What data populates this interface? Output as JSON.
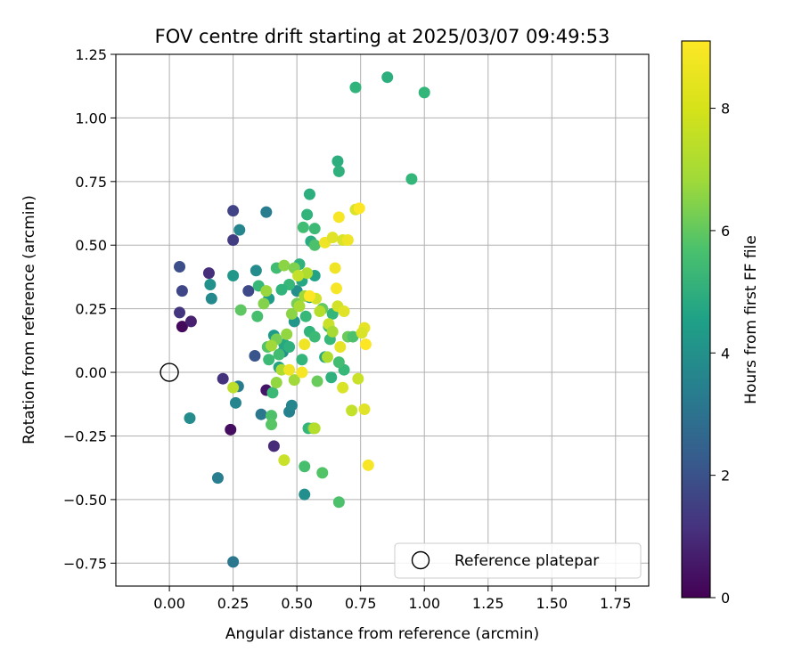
{
  "chart_data": {
    "type": "scatter",
    "title": "FOV centre drift starting at 2025/03/07 09:49:53",
    "xlabel": "Angular distance from reference (arcmin)",
    "ylabel": "Rotation from reference (arcmin)",
    "xlim": [
      -0.21,
      1.88
    ],
    "ylim": [
      -0.84,
      1.25
    ],
    "x_ticks": [
      0.0,
      0.25,
      0.5,
      0.75,
      1.0,
      1.25,
      1.5,
      1.75
    ],
    "x_tick_labels": [
      "0.00",
      "0.25",
      "0.50",
      "0.75",
      "1.00",
      "1.25",
      "1.50",
      "1.75"
    ],
    "y_ticks": [
      -0.75,
      -0.5,
      -0.25,
      0.0,
      0.25,
      0.5,
      0.75,
      1.0,
      1.25
    ],
    "y_tick_labels": [
      "−0.75",
      "−0.50",
      "−0.25",
      "0.00",
      "0.25",
      "0.50",
      "0.75",
      "1.00",
      "1.25"
    ],
    "grid": true,
    "colormap": "viridis",
    "colorbar": {
      "label": "Hours from first FF file",
      "range": [
        0,
        9.1
      ],
      "ticks": [
        0,
        2,
        4,
        6,
        8
      ],
      "tick_labels": [
        "0",
        "2",
        "4",
        "6",
        "8"
      ]
    },
    "legend": {
      "location": "lower-right",
      "entries": [
        {
          "label": "Reference platepar",
          "marker": "open-circle"
        }
      ]
    },
    "reference_point": {
      "x": 0.0,
      "y": 0.0
    },
    "series": [
      {
        "columns": [
          "x",
          "y",
          "hours"
        ],
        "points": [
          [
            0.05,
            0.18,
            0.2
          ],
          [
            0.085,
            0.2,
            0.8
          ],
          [
            0.04,
            0.235,
            1.4
          ],
          [
            0.05,
            0.32,
            1.9
          ],
          [
            0.04,
            0.415,
            2.2
          ],
          [
            0.24,
            -0.225,
            0.3
          ],
          [
            0.38,
            -0.07,
            0.5
          ],
          [
            0.21,
            -0.025,
            1.3
          ],
          [
            0.41,
            -0.29,
            1.1
          ],
          [
            0.25,
            0.635,
            1.8
          ],
          [
            0.25,
            0.52,
            1.6
          ],
          [
            0.155,
            0.39,
            1.2
          ],
          [
            0.335,
            0.065,
            2.4
          ],
          [
            0.31,
            0.32,
            2.0
          ],
          [
            0.25,
            -0.745,
            3.6
          ],
          [
            0.19,
            -0.415,
            3.9
          ],
          [
            0.08,
            -0.18,
            4.4
          ],
          [
            0.26,
            -0.12,
            4.1
          ],
          [
            0.27,
            -0.055,
            3.8
          ],
          [
            0.36,
            -0.165,
            3.6
          ],
          [
            0.38,
            0.63,
            3.9
          ],
          [
            0.275,
            0.56,
            4.2
          ],
          [
            0.16,
            0.345,
            4.6
          ],
          [
            0.165,
            0.29,
            4.3
          ],
          [
            0.25,
            0.38,
            4.8
          ],
          [
            0.34,
            0.4,
            4.4
          ],
          [
            0.47,
            -0.155,
            4.0
          ],
          [
            0.48,
            -0.13,
            4.2
          ],
          [
            0.53,
            -0.48,
            4.5
          ],
          [
            0.445,
            0.08,
            4.6
          ],
          [
            0.5,
            0.32,
            4.5
          ],
          [
            0.55,
            0.295,
            4.9
          ],
          [
            0.41,
            0.145,
            5.0
          ],
          [
            0.39,
            0.29,
            5.0
          ],
          [
            0.57,
            0.38,
            5.2
          ],
          [
            0.49,
            0.2,
            4.8
          ],
          [
            0.52,
            0.36,
            5.4
          ],
          [
            0.43,
            0.02,
            5.3
          ],
          [
            0.855,
            1.16,
            5.7
          ],
          [
            0.73,
            1.12,
            5.9
          ],
          [
            1.0,
            1.1,
            6.0
          ],
          [
            0.66,
            0.83,
            5.7
          ],
          [
            0.665,
            0.79,
            5.8
          ],
          [
            0.95,
            0.76,
            6.0
          ],
          [
            0.55,
            0.7,
            5.7
          ],
          [
            0.54,
            0.62,
            5.9
          ],
          [
            0.57,
            0.565,
            6.2
          ],
          [
            0.555,
            0.515,
            5.6
          ],
          [
            0.525,
            0.57,
            6.3
          ],
          [
            0.57,
            0.5,
            6.5
          ],
          [
            0.51,
            0.425,
            5.8
          ],
          [
            0.47,
            0.345,
            6.1
          ],
          [
            0.44,
            0.325,
            5.9
          ],
          [
            0.42,
            0.41,
            6.3
          ],
          [
            0.535,
            0.22,
            6.1
          ],
          [
            0.55,
            0.16,
            5.9
          ],
          [
            0.57,
            0.14,
            6.2
          ],
          [
            0.45,
            0.11,
            5.4
          ],
          [
            0.47,
            0.1,
            5.8
          ],
          [
            0.52,
            0.05,
            6.0
          ],
          [
            0.43,
            0.07,
            6.3
          ],
          [
            0.64,
            0.23,
            6.0
          ],
          [
            0.63,
            0.13,
            6.1
          ],
          [
            0.61,
            0.06,
            5.5
          ],
          [
            0.635,
            -0.02,
            5.8
          ],
          [
            0.685,
            0.01,
            6.1
          ],
          [
            0.665,
            0.04,
            6.3
          ],
          [
            0.545,
            -0.22,
            6.0
          ],
          [
            0.53,
            -0.37,
            6.4
          ],
          [
            0.6,
            -0.395,
            6.6
          ],
          [
            0.665,
            -0.51,
            6.5
          ],
          [
            0.405,
            -0.08,
            6.2
          ],
          [
            0.4,
            -0.17,
            6.5
          ],
          [
            0.4,
            -0.205,
            6.7
          ],
          [
            0.35,
            0.34,
            6.1
          ],
          [
            0.345,
            0.22,
            6.4
          ],
          [
            0.28,
            0.245,
            6.8
          ],
          [
            0.385,
            0.1,
            6.6
          ],
          [
            0.39,
            0.05,
            6.2
          ],
          [
            0.6,
            0.25,
            6.9
          ],
          [
            0.625,
            0.18,
            6.3
          ],
          [
            0.7,
            0.14,
            7.0
          ],
          [
            0.72,
            0.14,
            6.5
          ],
          [
            0.58,
            -0.035,
            7.0
          ],
          [
            0.565,
            -0.22,
            7.3
          ],
          [
            0.5,
            0.27,
            7.2
          ],
          [
            0.48,
            0.23,
            7.5
          ],
          [
            0.37,
            0.27,
            7.4
          ],
          [
            0.38,
            0.32,
            7.7
          ],
          [
            0.42,
            0.13,
            7.2
          ],
          [
            0.46,
            0.15,
            7.6
          ],
          [
            0.45,
            0.42,
            7.5
          ],
          [
            0.49,
            0.41,
            7.3
          ],
          [
            0.53,
            0.3,
            7.8
          ],
          [
            0.54,
            0.39,
            8.0
          ],
          [
            0.505,
            0.38,
            8.3
          ],
          [
            0.51,
            0.26,
            7.9
          ],
          [
            0.59,
            0.24,
            8.1
          ],
          [
            0.49,
            -0.03,
            7.8
          ],
          [
            0.44,
            0.01,
            8.0
          ],
          [
            0.42,
            -0.04,
            7.6
          ],
          [
            0.25,
            -0.06,
            8.2
          ],
          [
            0.4,
            0.105,
            7.8
          ],
          [
            0.62,
            0.06,
            8.0
          ],
          [
            0.625,
            0.19,
            8.4
          ],
          [
            0.64,
            0.16,
            7.9
          ],
          [
            0.45,
            -0.345,
            8.4
          ],
          [
            0.57,
            -0.22,
            8.1
          ],
          [
            0.575,
            0.29,
            8.5
          ],
          [
            0.61,
            0.51,
            8.9
          ],
          [
            0.64,
            0.53,
            8.7
          ],
          [
            0.68,
            0.52,
            8.6
          ],
          [
            0.7,
            0.52,
            8.9
          ],
          [
            0.665,
            0.61,
            9.0
          ],
          [
            0.73,
            0.64,
            8.6
          ],
          [
            0.745,
            0.645,
            9.1
          ],
          [
            0.65,
            0.41,
            8.9
          ],
          [
            0.655,
            0.33,
            9.0
          ],
          [
            0.66,
            0.26,
            8.5
          ],
          [
            0.685,
            0.24,
            8.7
          ],
          [
            0.765,
            0.175,
            8.8
          ],
          [
            0.755,
            0.155,
            8.6
          ],
          [
            0.77,
            0.11,
            9.1
          ],
          [
            0.67,
            0.1,
            8.8
          ],
          [
            0.68,
            -0.06,
            8.6
          ],
          [
            0.74,
            -0.025,
            8.4
          ],
          [
            0.715,
            -0.15,
            8.3
          ],
          [
            0.765,
            -0.145,
            8.7
          ],
          [
            0.78,
            -0.365,
            9.0
          ],
          [
            0.53,
            0.11,
            8.9
          ],
          [
            0.55,
            0.3,
            9.1
          ],
          [
            0.47,
            0.01,
            8.9
          ],
          [
            0.52,
            0.0,
            9.0
          ]
        ]
      }
    ]
  }
}
